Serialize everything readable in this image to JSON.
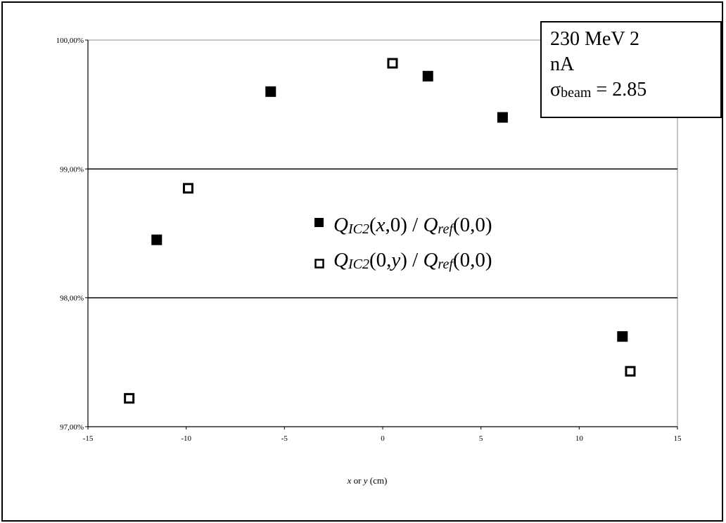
{
  "chart_data": {
    "type": "scatter",
    "xlabel_var1": "x",
    "xlabel_or": " or ",
    "xlabel_var2": "y",
    "xlabel_unit": " (cm)",
    "xlim": [
      -15,
      15
    ],
    "ylim": [
      97,
      100
    ],
    "x_ticks": [
      "-15",
      "-10",
      "-5",
      "0",
      "5",
      "10",
      "15"
    ],
    "y_ticks": [
      "97,00%",
      "98,00%",
      "99,00%",
      "100,00%"
    ],
    "y_tick_values": [
      97,
      98,
      99,
      100
    ],
    "grid": "horizontal",
    "series": [
      {
        "name": "QIC2(x,0) / Qref(0,0)",
        "marker": "filled-square",
        "color": "#000000",
        "points": [
          {
            "x": -11.5,
            "y": 98.45
          },
          {
            "x": -5.7,
            "y": 99.6
          },
          {
            "x": 2.3,
            "y": 99.72
          },
          {
            "x": 6.1,
            "y": 99.4
          },
          {
            "x": 12.2,
            "y": 97.7
          }
        ]
      },
      {
        "name": "QIC2(0,y) / Qref(0,0)",
        "marker": "open-square",
        "color": "#000000",
        "points": [
          {
            "x": -12.9,
            "y": 97.22
          },
          {
            "x": -9.9,
            "y": 98.85
          },
          {
            "x": 0.5,
            "y": 99.82
          },
          {
            "x": 12.6,
            "y": 97.43
          }
        ]
      }
    ]
  },
  "legend": {
    "entry1": {
      "q1": "Q",
      "sub1": "IC2",
      "args": "(x,0) / ",
      "q2": "Q",
      "sub2": "ref",
      "args2": "(0,0)"
    },
    "entry2": {
      "q1": "Q",
      "sub1": "IC2",
      "args": "(0,y) / ",
      "q2": "Q",
      "sub2": "ref",
      "args2": "(0,0)"
    }
  },
  "infobox": {
    "line1": "230 MeV 2",
    "line2": "nA",
    "sigma": "σ",
    "sigma_sub": "beam",
    "sigma_value": " = 2.85"
  }
}
